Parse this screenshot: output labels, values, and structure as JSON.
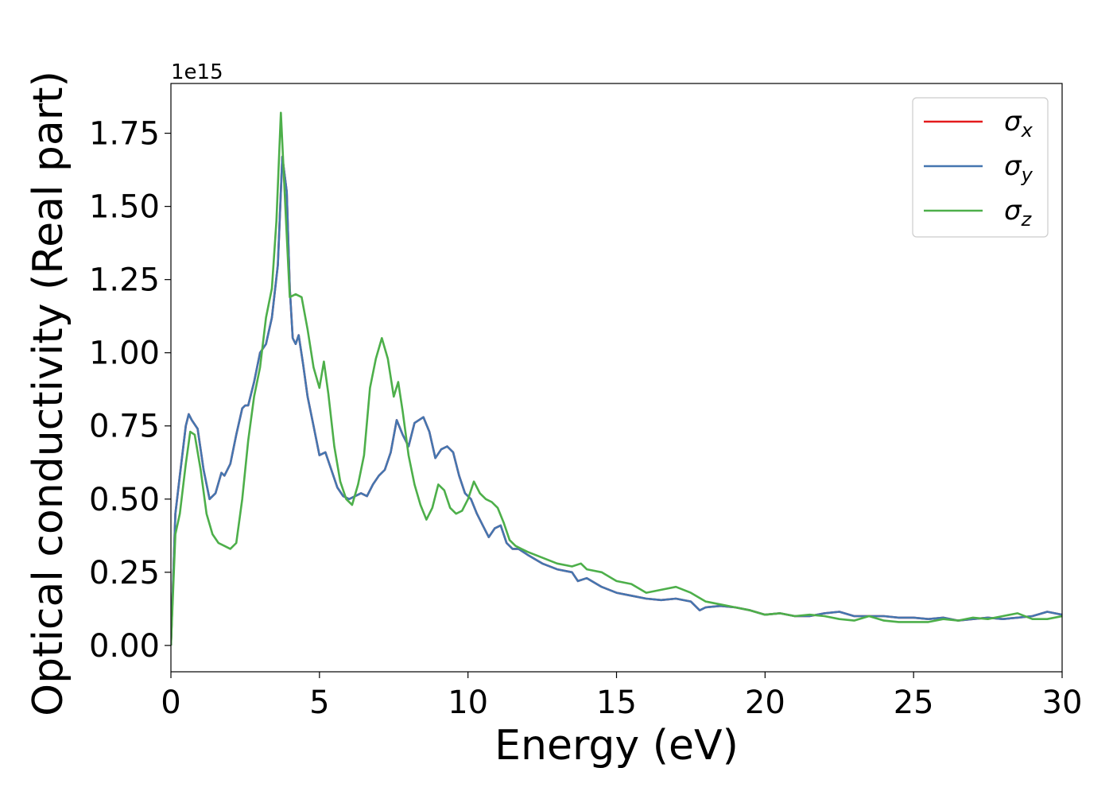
{
  "chart_data": {
    "type": "line",
    "xlabel": "Energy (eV)",
    "ylabel": "Optical conductivity (Real part)",
    "y_offset_text": "1e15",
    "xlim": [
      0,
      30
    ],
    "ylim": [
      -0.09,
      1.92
    ],
    "x_ticks": [
      0,
      5,
      10,
      15,
      20,
      25,
      30
    ],
    "x_tick_labels": [
      "0",
      "5",
      "10",
      "15",
      "20",
      "25",
      "30"
    ],
    "y_ticks": [
      0.0,
      0.25,
      0.5,
      0.75,
      1.0,
      1.25,
      1.5,
      1.75
    ],
    "y_tick_labels": [
      "0.00",
      "0.25",
      "0.50",
      "0.75",
      "1.00",
      "1.25",
      "1.50",
      "1.75"
    ],
    "grid": false,
    "legend_position": "top-right",
    "series": [
      {
        "name": "σx",
        "color": "#e41a1c",
        "x": [
          0,
          0.15,
          0.3,
          0.5,
          0.6,
          0.7,
          0.9,
          1.1,
          1.3,
          1.5,
          1.7,
          1.8,
          2.0,
          2.2,
          2.4,
          2.5,
          2.6,
          2.8,
          3.0,
          3.2,
          3.4,
          3.6,
          3.75,
          3.9,
          4.0,
          4.1,
          4.2,
          4.3,
          4.45,
          4.6,
          4.8,
          5.0,
          5.2,
          5.4,
          5.6,
          5.8,
          6.0,
          6.2,
          6.4,
          6.6,
          6.8,
          7.0,
          7.2,
          7.4,
          7.6,
          7.8,
          8.0,
          8.2,
          8.5,
          8.7,
          8.9,
          9.1,
          9.3,
          9.5,
          9.7,
          9.9,
          10.1,
          10.3,
          10.5,
          10.7,
          10.9,
          11.1,
          11.3,
          11.5,
          11.7,
          12.0,
          12.5,
          13.0,
          13.5,
          13.7,
          14.0,
          14.5,
          15.0,
          15.5,
          16.0,
          16.5,
          17.0,
          17.5,
          17.8,
          18.0,
          18.5,
          19.0,
          19.5,
          20.0,
          20.5,
          21.0,
          21.5,
          22.0,
          22.5,
          23.0,
          23.5,
          24.0,
          24.5,
          25.0,
          25.5,
          26.0,
          26.5,
          27.0,
          27.5,
          28.0,
          28.5,
          29.0,
          29.5,
          30.0
        ],
        "y": [
          0.0,
          0.45,
          0.58,
          0.75,
          0.79,
          0.77,
          0.74,
          0.6,
          0.5,
          0.52,
          0.59,
          0.58,
          0.62,
          0.72,
          0.81,
          0.82,
          0.82,
          0.9,
          1.0,
          1.03,
          1.12,
          1.3,
          1.67,
          1.55,
          1.22,
          1.05,
          1.03,
          1.06,
          0.96,
          0.85,
          0.75,
          0.65,
          0.66,
          0.6,
          0.54,
          0.51,
          0.5,
          0.51,
          0.52,
          0.51,
          0.55,
          0.58,
          0.6,
          0.66,
          0.77,
          0.72,
          0.68,
          0.76,
          0.78,
          0.73,
          0.64,
          0.67,
          0.68,
          0.66,
          0.58,
          0.52,
          0.5,
          0.45,
          0.41,
          0.37,
          0.4,
          0.41,
          0.35,
          0.33,
          0.33,
          0.31,
          0.28,
          0.26,
          0.25,
          0.22,
          0.23,
          0.2,
          0.18,
          0.17,
          0.16,
          0.155,
          0.16,
          0.15,
          0.12,
          0.13,
          0.135,
          0.13,
          0.12,
          0.105,
          0.11,
          0.1,
          0.1,
          0.11,
          0.115,
          0.1,
          0.1,
          0.1,
          0.095,
          0.095,
          0.09,
          0.095,
          0.085,
          0.09,
          0.095,
          0.09,
          0.095,
          0.1,
          0.115,
          0.105
        ]
      },
      {
        "name": "σy",
        "color": "#4476b0",
        "x": [
          0,
          0.15,
          0.3,
          0.5,
          0.6,
          0.7,
          0.9,
          1.1,
          1.3,
          1.5,
          1.7,
          1.8,
          2.0,
          2.2,
          2.4,
          2.5,
          2.6,
          2.8,
          3.0,
          3.2,
          3.4,
          3.6,
          3.75,
          3.9,
          4.0,
          4.1,
          4.2,
          4.3,
          4.45,
          4.6,
          4.8,
          5.0,
          5.2,
          5.4,
          5.6,
          5.8,
          6.0,
          6.2,
          6.4,
          6.6,
          6.8,
          7.0,
          7.2,
          7.4,
          7.6,
          7.8,
          8.0,
          8.2,
          8.5,
          8.7,
          8.9,
          9.1,
          9.3,
          9.5,
          9.7,
          9.9,
          10.1,
          10.3,
          10.5,
          10.7,
          10.9,
          11.1,
          11.3,
          11.5,
          11.7,
          12.0,
          12.5,
          13.0,
          13.5,
          13.7,
          14.0,
          14.5,
          15.0,
          15.5,
          16.0,
          16.5,
          17.0,
          17.5,
          17.8,
          18.0,
          18.5,
          19.0,
          19.5,
          20.0,
          20.5,
          21.0,
          21.5,
          22.0,
          22.5,
          23.0,
          23.5,
          24.0,
          24.5,
          25.0,
          25.5,
          26.0,
          26.5,
          27.0,
          27.5,
          28.0,
          28.5,
          29.0,
          29.5,
          30.0
        ],
        "y": [
          0.0,
          0.45,
          0.58,
          0.75,
          0.79,
          0.77,
          0.74,
          0.6,
          0.5,
          0.52,
          0.59,
          0.58,
          0.62,
          0.72,
          0.81,
          0.82,
          0.82,
          0.9,
          1.0,
          1.03,
          1.12,
          1.3,
          1.67,
          1.55,
          1.22,
          1.05,
          1.03,
          1.06,
          0.96,
          0.85,
          0.75,
          0.65,
          0.66,
          0.6,
          0.54,
          0.51,
          0.5,
          0.51,
          0.52,
          0.51,
          0.55,
          0.58,
          0.6,
          0.66,
          0.77,
          0.72,
          0.68,
          0.76,
          0.78,
          0.73,
          0.64,
          0.67,
          0.68,
          0.66,
          0.58,
          0.52,
          0.5,
          0.45,
          0.41,
          0.37,
          0.4,
          0.41,
          0.35,
          0.33,
          0.33,
          0.31,
          0.28,
          0.26,
          0.25,
          0.22,
          0.23,
          0.2,
          0.18,
          0.17,
          0.16,
          0.155,
          0.16,
          0.15,
          0.12,
          0.13,
          0.135,
          0.13,
          0.12,
          0.105,
          0.11,
          0.1,
          0.1,
          0.11,
          0.115,
          0.1,
          0.1,
          0.1,
          0.095,
          0.095,
          0.09,
          0.095,
          0.085,
          0.09,
          0.095,
          0.09,
          0.095,
          0.1,
          0.115,
          0.105
        ]
      },
      {
        "name": "σz",
        "color": "#4daf4a",
        "x": [
          0,
          0.15,
          0.3,
          0.5,
          0.65,
          0.8,
          1.0,
          1.2,
          1.4,
          1.6,
          1.8,
          2.0,
          2.2,
          2.4,
          2.6,
          2.8,
          3.0,
          3.2,
          3.4,
          3.55,
          3.7,
          3.85,
          4.0,
          4.2,
          4.4,
          4.6,
          4.8,
          5.0,
          5.15,
          5.3,
          5.5,
          5.7,
          5.9,
          6.1,
          6.3,
          6.5,
          6.7,
          6.9,
          7.1,
          7.3,
          7.5,
          7.65,
          7.8,
          8.0,
          8.2,
          8.4,
          8.6,
          8.8,
          9.0,
          9.2,
          9.4,
          9.6,
          9.8,
          10.0,
          10.2,
          10.4,
          10.6,
          10.8,
          11.0,
          11.2,
          11.4,
          11.6,
          11.8,
          12.0,
          12.5,
          13.0,
          13.5,
          13.8,
          14.0,
          14.5,
          15.0,
          15.5,
          16.0,
          16.5,
          17.0,
          17.5,
          18.0,
          18.5,
          19.0,
          19.5,
          20.0,
          20.5,
          21.0,
          21.5,
          22.0,
          22.5,
          23.0,
          23.5,
          24.0,
          24.5,
          25.0,
          25.5,
          26.0,
          26.5,
          27.0,
          27.5,
          28.0,
          28.5,
          29.0,
          29.5,
          30.0
        ],
        "y": [
          0.0,
          0.38,
          0.45,
          0.62,
          0.73,
          0.72,
          0.6,
          0.45,
          0.38,
          0.35,
          0.34,
          0.33,
          0.35,
          0.5,
          0.7,
          0.85,
          0.95,
          1.12,
          1.22,
          1.45,
          1.82,
          1.5,
          1.19,
          1.2,
          1.19,
          1.08,
          0.95,
          0.88,
          0.97,
          0.86,
          0.68,
          0.56,
          0.5,
          0.48,
          0.55,
          0.65,
          0.88,
          0.98,
          1.05,
          0.98,
          0.85,
          0.9,
          0.8,
          0.65,
          0.55,
          0.48,
          0.43,
          0.47,
          0.55,
          0.53,
          0.47,
          0.45,
          0.46,
          0.5,
          0.56,
          0.52,
          0.5,
          0.49,
          0.47,
          0.42,
          0.36,
          0.34,
          0.33,
          0.32,
          0.3,
          0.28,
          0.27,
          0.28,
          0.26,
          0.25,
          0.22,
          0.21,
          0.18,
          0.19,
          0.2,
          0.18,
          0.15,
          0.14,
          0.13,
          0.12,
          0.105,
          0.11,
          0.1,
          0.105,
          0.1,
          0.09,
          0.085,
          0.1,
          0.085,
          0.08,
          0.08,
          0.08,
          0.09,
          0.085,
          0.095,
          0.09,
          0.1,
          0.11,
          0.09,
          0.09,
          0.1
        ]
      }
    ]
  }
}
